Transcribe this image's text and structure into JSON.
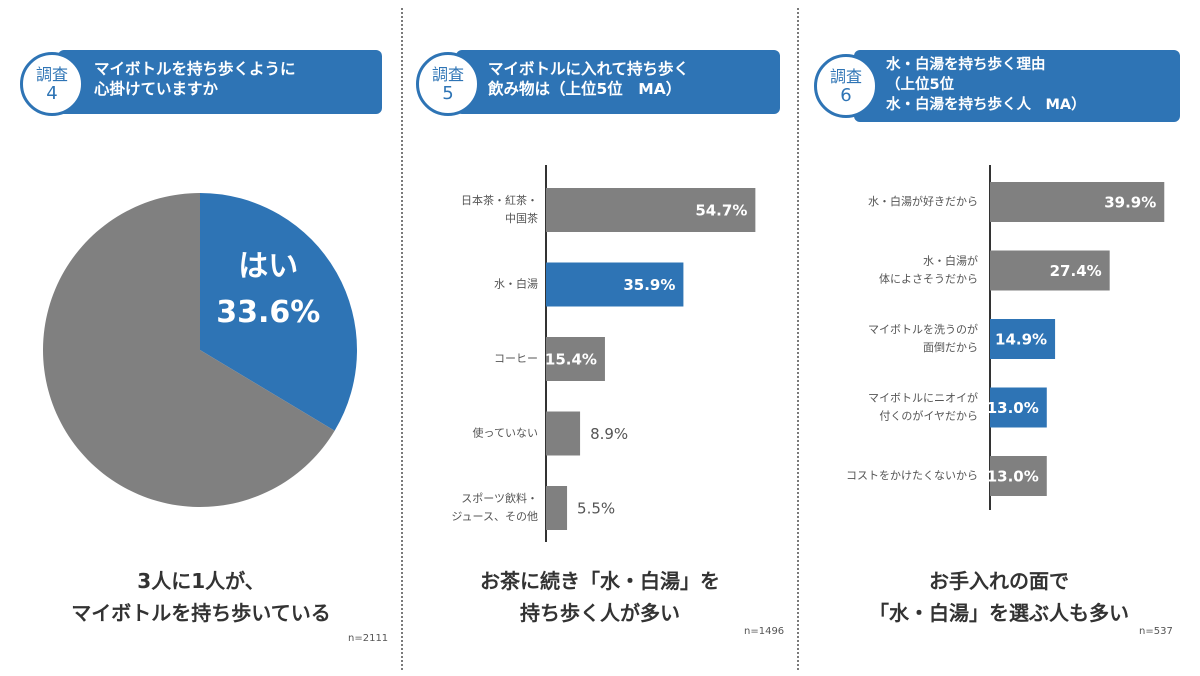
{
  "surveys": [
    {
      "keyword": "調査",
      "number": "4",
      "title_lines": [
        "マイボトルを持ち歩くように",
        "心掛けていますか"
      ],
      "caption_lines": [
        "3人に1人が、",
        "マイボトルを持ち歩いている"
      ],
      "n_label": "n=2111"
    },
    {
      "keyword": "調査",
      "number": "5",
      "title_lines": [
        "マイボトルに入れて持ち歩く",
        "飲み物は（上位5位　MA）"
      ],
      "caption_lines": [
        "お茶に続き「水・白湯」を",
        "持ち歩く人が多い"
      ],
      "n_label": "n=1496"
    },
    {
      "keyword": "調査",
      "number": "6",
      "title_lines": [
        "水・白湯を持ち歩く理由",
        "（上位5位",
        "水・白湯を持ち歩く人　MA）"
      ],
      "caption_lines": [
        "お手入れの面で",
        "「水・白湯」を選ぶ人も多い"
      ],
      "n_label": "n=537"
    }
  ],
  "colors": {
    "highlight": "#2e74b5",
    "base": "#808080",
    "axis": "#333333"
  },
  "chart_data": [
    {
      "type": "pie",
      "slices": [
        {
          "label": "はい",
          "value": 33.6,
          "value_label": "33.6%",
          "color": "#2e74b5",
          "highlight": true
        },
        {
          "label": "",
          "value": 66.4,
          "value_label": "",
          "color": "#808080",
          "highlight": false
        }
      ]
    },
    {
      "type": "bar",
      "orientation": "horizontal",
      "categories": [
        [
          "日本茶・紅茶・",
          "中国茶"
        ],
        [
          "水・白湯"
        ],
        [
          "コーヒー"
        ],
        [
          "使っていない"
        ],
        [
          "スポーツ飲料・",
          "ジュース、その他"
        ]
      ],
      "values": [
        54.7,
        35.9,
        15.4,
        8.9,
        5.5
      ],
      "value_labels": [
        "54.7%",
        "35.9%",
        "15.4%",
        "8.9%",
        "5.5%"
      ],
      "highlight": [
        false,
        true,
        false,
        false,
        false
      ],
      "xlim": [
        0,
        58
      ]
    },
    {
      "type": "bar",
      "orientation": "horizontal",
      "categories": [
        [
          "水・白湯が好きだから"
        ],
        [
          "水・白湯が",
          "体によさそうだから"
        ],
        [
          "マイボトルを洗うのが",
          "面倒だから"
        ],
        [
          "マイボトルにニオイが",
          "付くのがイヤだから"
        ],
        [
          "コストをかけたくないから"
        ]
      ],
      "values": [
        39.9,
        27.4,
        14.9,
        13.0,
        13.0
      ],
      "value_labels": [
        "39.9%",
        "27.4%",
        "14.9%",
        "13.0%",
        "13.0%"
      ],
      "highlight": [
        false,
        false,
        true,
        true,
        false
      ],
      "xlim": [
        0,
        43.5
      ]
    }
  ]
}
